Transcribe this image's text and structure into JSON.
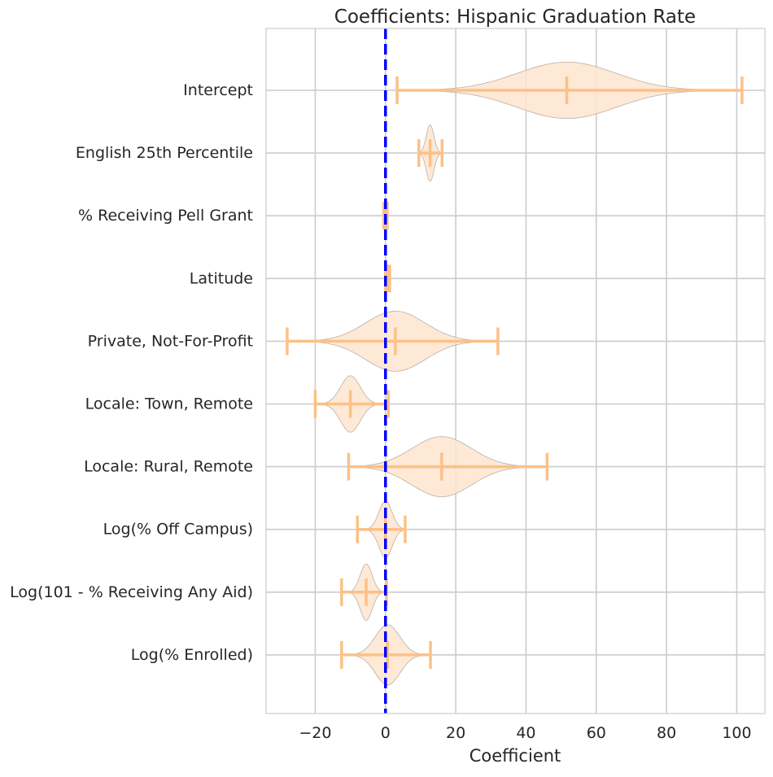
{
  "chart_data": {
    "type": "violin",
    "title": "Coefficients: Hispanic Graduation Rate",
    "xlabel": "Coefficient",
    "ylabel": "",
    "xlim": [
      -34,
      108
    ],
    "xticks": [
      -20,
      0,
      20,
      40,
      60,
      80,
      100
    ],
    "xtick_labels": [
      "−20",
      "0",
      "20",
      "40",
      "60",
      "80",
      "100"
    ],
    "grid": true,
    "reference_line": {
      "x": 0,
      "style": "dashed",
      "color": "#0000ff"
    },
    "colors": {
      "violin_fill": "#fde5cf",
      "violin_edge": "#b9b0a8",
      "whisker": "#fdc086",
      "grid": "#cccccc"
    },
    "categories": [
      "Intercept",
      "English 25th Percentile",
      "% Receiving Pell Grant",
      "Latitude",
      "Private, Not-For-Profit",
      "Locale: Town, Remote",
      "Locale: Rural, Remote",
      "Log(% Off Campus)",
      "Log(101 - % Receiving Any Aid)",
      "Log(% Enrolled)"
    ],
    "series": [
      {
        "min": 3.3,
        "median": 51.6,
        "max": 101.5,
        "sd": 14,
        "width": 0.45
      },
      {
        "min": 9.5,
        "median": 12.7,
        "max": 16.1,
        "sd": 1.1,
        "width": 0.45
      },
      {
        "min": -0.5,
        "median": 0.0,
        "max": 0.5,
        "sd": 0.15,
        "width": 0.15
      },
      {
        "min": 0.0,
        "median": 0.6,
        "max": 1.2,
        "sd": 0.25,
        "width": 0.12
      },
      {
        "min": -28.0,
        "median": 2.8,
        "max": 32.0,
        "sd": 8.5,
        "width": 0.48
      },
      {
        "min": -20.0,
        "median": -10.0,
        "max": 0.8,
        "sd": 2.8,
        "width": 0.45
      },
      {
        "min": -10.5,
        "median": 16.0,
        "max": 46.0,
        "sd": 8.5,
        "width": 0.48
      },
      {
        "min": -8.0,
        "median": 0.0,
        "max": 5.6,
        "sd": 1.9,
        "width": 0.45
      },
      {
        "min": -12.5,
        "median": -5.5,
        "max": 0.3,
        "sd": 1.7,
        "width": 0.45
      },
      {
        "min": -12.5,
        "median": 0.6,
        "max": 12.8,
        "sd": 3.5,
        "width": 0.48
      }
    ]
  }
}
